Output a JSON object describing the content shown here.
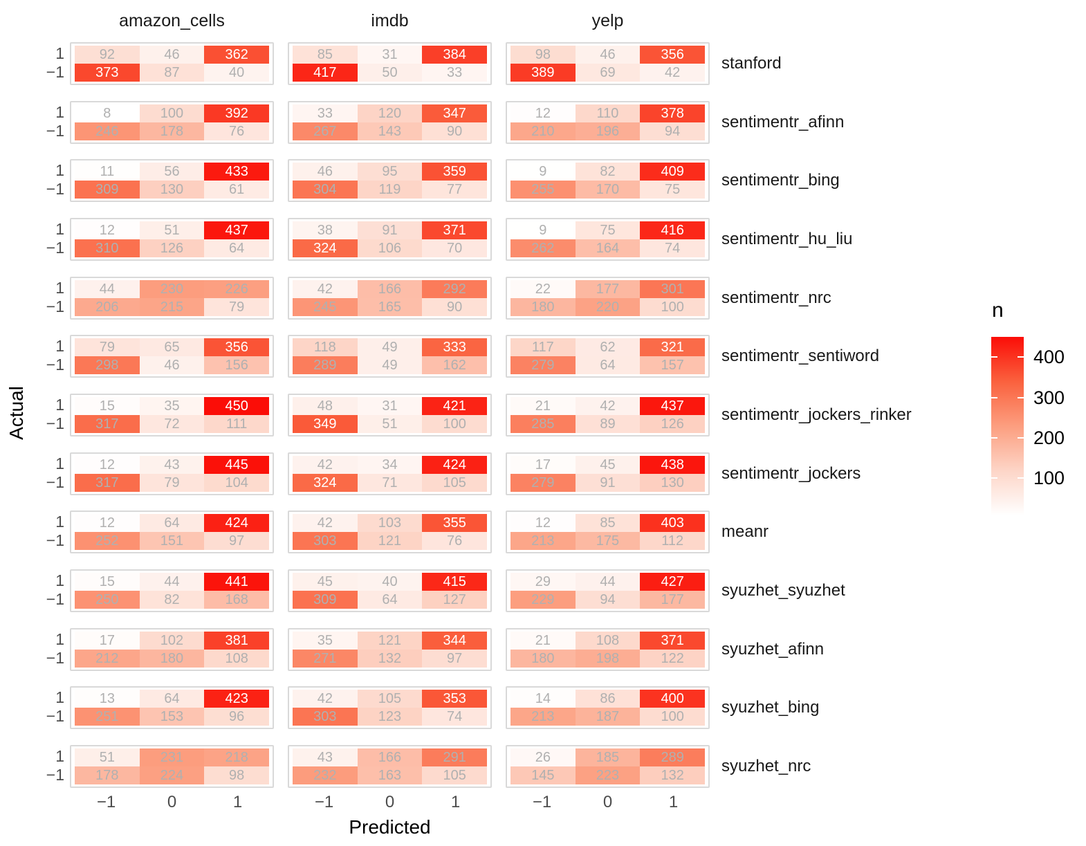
{
  "chart_data": {
    "type": "heatmap",
    "title": "",
    "xlabel": "Predicted",
    "ylabel": "Actual",
    "x_ticks": [
      "−1",
      "0",
      "1"
    ],
    "y_ticks": [
      "1",
      "−1"
    ],
    "facet_columns": [
      "amazon_cells",
      "imdb",
      "yelp"
    ],
    "facet_rows": [
      "stanford",
      "sentimentr_afinn",
      "sentimentr_bing",
      "sentimentr_hu_liu",
      "sentimentr_nrc",
      "sentimentr_sentiword",
      "sentimentr_jockers_rinker",
      "sentimentr_jockers",
      "meanr",
      "syuzhet_syuzhet",
      "syuzhet_afinn",
      "syuzhet_bing",
      "syuzhet_nrc"
    ],
    "legend": {
      "title": "n",
      "ticks": [
        400,
        300,
        200,
        100
      ],
      "domain": [
        8,
        450
      ],
      "low_color": "#FFFFFF",
      "high_color": "#FB0D07"
    },
    "grid": false,
    "legend_position": "right",
    "values": [
      {
        "method": "stanford",
        "panels": [
          [
            [
              92,
              46,
              362
            ],
            [
              373,
              87,
              40
            ]
          ],
          [
            [
              85,
              31,
              384
            ],
            [
              417,
              50,
              33
            ]
          ],
          [
            [
              98,
              46,
              356
            ],
            [
              389,
              69,
              42
            ]
          ]
        ]
      },
      {
        "method": "sentimentr_afinn",
        "panels": [
          [
            [
              8,
              100,
              392
            ],
            [
              246,
              178,
              76
            ]
          ],
          [
            [
              33,
              120,
              347
            ],
            [
              267,
              143,
              90
            ]
          ],
          [
            [
              12,
              110,
              378
            ],
            [
              210,
              196,
              94
            ]
          ]
        ]
      },
      {
        "method": "sentimentr_bing",
        "panels": [
          [
            [
              11,
              56,
              433
            ],
            [
              309,
              130,
              61
            ]
          ],
          [
            [
              46,
              95,
              359
            ],
            [
              304,
              119,
              77
            ]
          ],
          [
            [
              9,
              82,
              409
            ],
            [
              255,
              170,
              75
            ]
          ]
        ]
      },
      {
        "method": "sentimentr_hu_liu",
        "panels": [
          [
            [
              12,
              51,
              437
            ],
            [
              310,
              126,
              64
            ]
          ],
          [
            [
              38,
              91,
              371
            ],
            [
              324,
              106,
              70
            ]
          ],
          [
            [
              9,
              75,
              416
            ],
            [
              262,
              164,
              74
            ]
          ]
        ]
      },
      {
        "method": "sentimentr_nrc",
        "panels": [
          [
            [
              44,
              230,
              226
            ],
            [
              206,
              215,
              79
            ]
          ],
          [
            [
              42,
              166,
              292
            ],
            [
              245,
              165,
              90
            ]
          ],
          [
            [
              22,
              177,
              301
            ],
            [
              180,
              220,
              100
            ]
          ]
        ]
      },
      {
        "method": "sentimentr_sentiword",
        "panels": [
          [
            [
              79,
              65,
              356
            ],
            [
              298,
              46,
              156
            ]
          ],
          [
            [
              118,
              49,
              333
            ],
            [
              289,
              49,
              162
            ]
          ],
          [
            [
              117,
              62,
              321
            ],
            [
              279,
              64,
              157
            ]
          ]
        ]
      },
      {
        "method": "sentimentr_jockers_rinker",
        "panels": [
          [
            [
              15,
              35,
              450
            ],
            [
              317,
              72,
              111
            ]
          ],
          [
            [
              48,
              31,
              421
            ],
            [
              349,
              51,
              100
            ]
          ],
          [
            [
              21,
              42,
              437
            ],
            [
              285,
              89,
              126
            ]
          ]
        ]
      },
      {
        "method": "sentimentr_jockers",
        "panels": [
          [
            [
              12,
              43,
              445
            ],
            [
              317,
              79,
              104
            ]
          ],
          [
            [
              42,
              34,
              424
            ],
            [
              324,
              71,
              105
            ]
          ],
          [
            [
              17,
              45,
              438
            ],
            [
              279,
              91,
              130
            ]
          ]
        ]
      },
      {
        "method": "meanr",
        "panels": [
          [
            [
              12,
              64,
              424
            ],
            [
              252,
              151,
              97
            ]
          ],
          [
            [
              42,
              103,
              355
            ],
            [
              303,
              121,
              76
            ]
          ],
          [
            [
              12,
              85,
              403
            ],
            [
              213,
              175,
              112
            ]
          ]
        ]
      },
      {
        "method": "syuzhet_syuzhet",
        "panels": [
          [
            [
              15,
              44,
              441
            ],
            [
              250,
              82,
              168
            ]
          ],
          [
            [
              45,
              40,
              415
            ],
            [
              309,
              64,
              127
            ]
          ],
          [
            [
              29,
              44,
              427
            ],
            [
              229,
              94,
              177
            ]
          ]
        ]
      },
      {
        "method": "syuzhet_afinn",
        "panels": [
          [
            [
              17,
              102,
              381
            ],
            [
              212,
              180,
              108
            ]
          ],
          [
            [
              35,
              121,
              344
            ],
            [
              271,
              132,
              97
            ]
          ],
          [
            [
              21,
              108,
              371
            ],
            [
              180,
              198,
              122
            ]
          ]
        ]
      },
      {
        "method": "syuzhet_bing",
        "panels": [
          [
            [
              13,
              64,
              423
            ],
            [
              251,
              153,
              96
            ]
          ],
          [
            [
              42,
              105,
              353
            ],
            [
              303,
              123,
              74
            ]
          ],
          [
            [
              14,
              86,
              400
            ],
            [
              213,
              187,
              100
            ]
          ]
        ]
      },
      {
        "method": "syuzhet_nrc",
        "panels": [
          [
            [
              51,
              231,
              218
            ],
            [
              178,
              224,
              98
            ]
          ],
          [
            [
              43,
              166,
              291
            ],
            [
              232,
              163,
              105
            ]
          ],
          [
            [
              26,
              185,
              289
            ],
            [
              145,
              223,
              132
            ]
          ]
        ]
      }
    ]
  }
}
